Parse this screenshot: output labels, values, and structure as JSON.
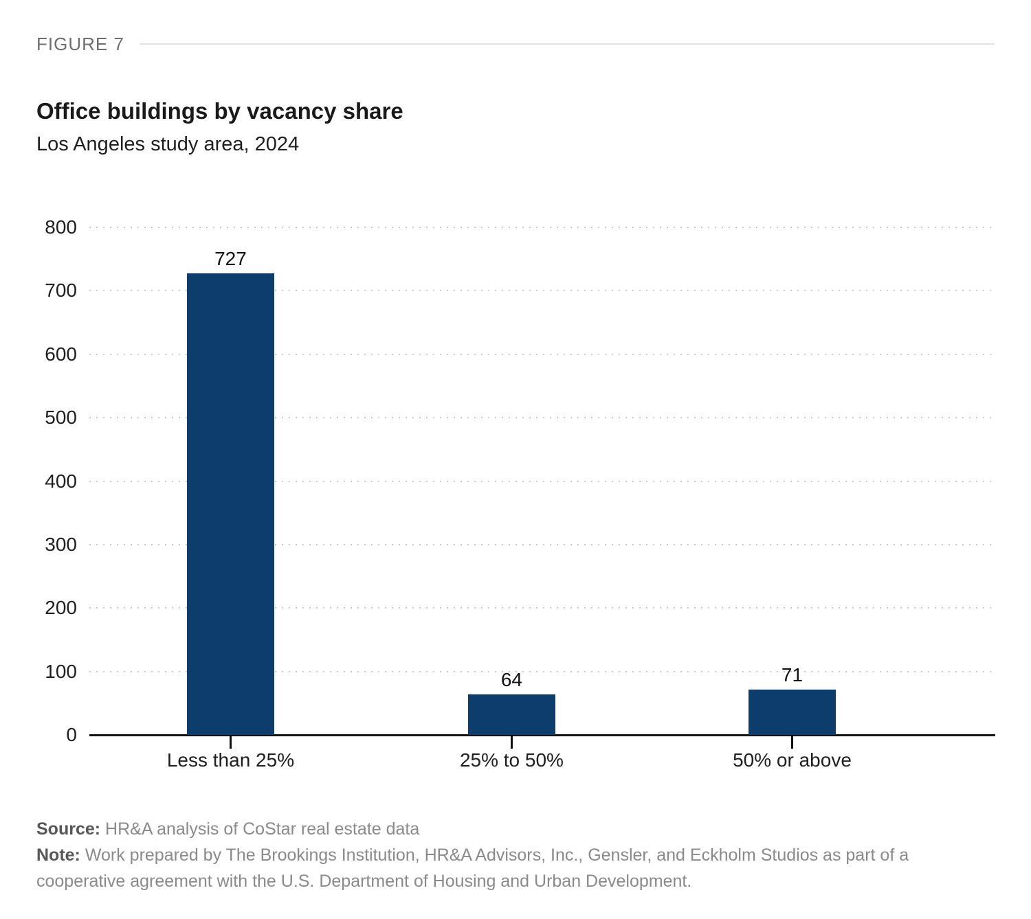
{
  "header": {
    "figure_label": "FIGURE 7",
    "title": "Office buildings by vacancy share",
    "subtitle": "Los Angeles study area, 2024"
  },
  "chart_data": {
    "type": "bar",
    "title": "Office buildings by vacancy share",
    "subtitle": "Los Angeles study area, 2024",
    "categories": [
      "Less than 25%",
      "25% to 50%",
      "50% or above"
    ],
    "values": [
      727,
      64,
      71
    ],
    "value_labels": [
      "727",
      "64",
      "71"
    ],
    "xlabel": "",
    "ylabel": "",
    "ylim": [
      0,
      800
    ],
    "yticks": [
      0,
      100,
      200,
      300,
      400,
      500,
      600,
      700,
      800
    ],
    "grid": "horizontal-dotted",
    "legend": "none",
    "bar_color": "#0d3d6c",
    "axis_color": "#111111",
    "gridline_color": "#c9c9c9"
  },
  "footer": {
    "source_label": "Source:",
    "source_text": "HR&A analysis of CoStar real estate data",
    "note_label": "Note:",
    "note_text": "Work prepared by The Brookings Institution, HR&A Advisors, Inc., Gensler, and Eckholm Studios as part of a cooperative agreement with the U.S. Department of Housing and Urban Development."
  }
}
